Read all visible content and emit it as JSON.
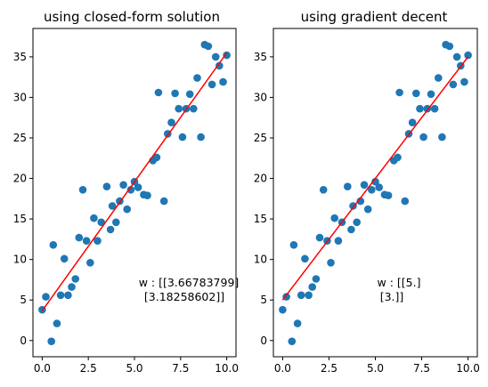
{
  "chart_data": [
    {
      "type": "scatter",
      "title": "using closed-form solution",
      "xlabel": "",
      "ylabel": "",
      "xlim": [
        -0.5,
        10.5
      ],
      "ylim": [
        -2,
        38.5
      ],
      "grid": false,
      "xticks": [
        0,
        2.5,
        5,
        7.5,
        10
      ],
      "xtick_labels": [
        "0.0",
        "2.5",
        "5.0",
        "7.5",
        "10.0"
      ],
      "yticks": [
        0,
        5,
        10,
        15,
        20,
        25,
        30,
        35
      ],
      "ytick_labels": [
        "0",
        "5",
        "10",
        "15",
        "20",
        "25",
        "30",
        "35"
      ],
      "points": {
        "x": [
          0.0,
          0.2,
          0.5,
          0.6,
          0.8,
          1.0,
          1.2,
          1.4,
          1.6,
          1.8,
          2.0,
          2.2,
          2.4,
          2.6,
          2.8,
          3.0,
          3.2,
          3.5,
          3.7,
          3.8,
          4.0,
          4.2,
          4.4,
          4.6,
          4.8,
          5.0,
          5.2,
          5.5,
          5.7,
          6.0,
          6.2,
          6.3,
          6.6,
          6.8,
          7.0,
          7.2,
          7.4,
          7.6,
          7.8,
          8.0,
          8.2,
          8.4,
          8.6,
          8.8,
          9.0,
          9.2,
          9.4,
          9.6,
          9.8,
          10.0
        ],
        "y": [
          3.8,
          5.4,
          -0.1,
          11.8,
          2.1,
          5.6,
          10.1,
          5.6,
          6.6,
          7.6,
          12.7,
          18.6,
          12.3,
          9.6,
          15.1,
          12.3,
          14.6,
          19.0,
          13.7,
          16.6,
          14.6,
          17.2,
          19.2,
          16.2,
          18.6,
          19.6,
          18.9,
          18.0,
          17.9,
          22.2,
          22.6,
          30.6,
          17.2,
          25.5,
          26.9,
          30.5,
          28.6,
          25.1,
          28.6,
          30.4,
          28.6,
          32.4,
          25.1,
          36.5,
          36.3,
          31.6,
          35.0,
          33.9,
          31.9,
          35.2
        ]
      },
      "fit_line": {
        "x": [
          0.0,
          10.0
        ],
        "y": [
          3.6678,
          35.4937
        ]
      },
      "annotation": [
        "w : [[3.66783799]",
        " [3.18258602]]"
      ],
      "colors": {
        "points": "#1f77b4",
        "line": "#ff0000"
      }
    },
    {
      "type": "scatter",
      "title": "using gradient decent",
      "xlabel": "",
      "ylabel": "",
      "xlim": [
        -0.5,
        10.5
      ],
      "ylim": [
        -2,
        38.5
      ],
      "grid": false,
      "xticks": [
        0,
        2.5,
        5,
        7.5,
        10
      ],
      "xtick_labels": [
        "0.0",
        "2.5",
        "5.0",
        "7.5",
        "10.0"
      ],
      "yticks": [
        0,
        5,
        10,
        15,
        20,
        25,
        30,
        35
      ],
      "ytick_labels": [
        "0",
        "5",
        "10",
        "15",
        "20",
        "25",
        "30",
        "35"
      ],
      "points": {
        "x": [
          0.0,
          0.2,
          0.5,
          0.6,
          0.8,
          1.0,
          1.2,
          1.4,
          1.6,
          1.8,
          2.0,
          2.2,
          2.4,
          2.6,
          2.8,
          3.0,
          3.2,
          3.5,
          3.7,
          3.8,
          4.0,
          4.2,
          4.4,
          4.6,
          4.8,
          5.0,
          5.2,
          5.5,
          5.7,
          6.0,
          6.2,
          6.3,
          6.6,
          6.8,
          7.0,
          7.2,
          7.4,
          7.6,
          7.8,
          8.0,
          8.2,
          8.4,
          8.6,
          8.8,
          9.0,
          9.2,
          9.4,
          9.6,
          9.8,
          10.0
        ],
        "y": [
          3.8,
          5.4,
          -0.1,
          11.8,
          2.1,
          5.6,
          10.1,
          5.6,
          6.6,
          7.6,
          12.7,
          18.6,
          12.3,
          9.6,
          15.1,
          12.3,
          14.6,
          19.0,
          13.7,
          16.6,
          14.6,
          17.2,
          19.2,
          16.2,
          18.6,
          19.6,
          18.9,
          18.0,
          17.9,
          22.2,
          22.6,
          30.6,
          17.2,
          25.5,
          26.9,
          30.5,
          28.6,
          25.1,
          28.6,
          30.4,
          28.6,
          32.4,
          25.1,
          36.5,
          36.3,
          31.6,
          35.0,
          33.9,
          31.9,
          35.2
        ]
      },
      "fit_line": {
        "x": [
          0.0,
          10.0
        ],
        "y": [
          5.0,
          35.0
        ]
      },
      "annotation": [
        "w : [[5.]",
        " [3.]]"
      ],
      "colors": {
        "points": "#1f77b4",
        "line": "#ff0000"
      }
    }
  ]
}
